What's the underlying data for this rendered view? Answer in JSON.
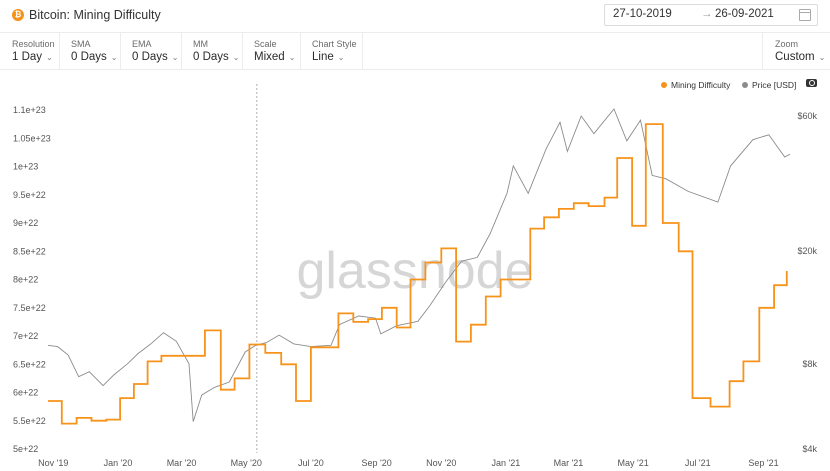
{
  "header": {
    "title": "Bitcoin: Mining Difficulty",
    "coin_glyph": "₿",
    "date_from": "27-10-2019",
    "date_arrow": "→",
    "date_to": "26-09-2021"
  },
  "controls": [
    {
      "label": "Resolution",
      "value": "1 Day"
    },
    {
      "label": "SMA",
      "value": "0 Days"
    },
    {
      "label": "EMA",
      "value": "0 Days"
    },
    {
      "label": "MM",
      "value": "0 Days"
    },
    {
      "label": "Scale",
      "value": "Mixed"
    },
    {
      "label": "Chart Style",
      "value": "Line"
    }
  ],
  "zoom": {
    "label": "Zoom",
    "value": "Custom"
  },
  "watermark": "glassnode",
  "colors": {
    "difficulty": "#f7931a",
    "price": "#8c8c8c"
  },
  "chart_data": {
    "type": "line",
    "x_range": [
      "2019-10-27",
      "2021-09-26"
    ],
    "x_ticks": [
      "Nov '19",
      "Jan '20",
      "Mar '20",
      "May '20",
      "Jul '20",
      "Sep '20",
      "Nov '20",
      "Jan '21",
      "Mar '21",
      "May '21",
      "Jul '21",
      "Sep '21"
    ],
    "y_left": {
      "label": "",
      "min": 5e+22,
      "max": 1.1e+23,
      "ticks": [
        "5e+22",
        "5.5e+22",
        "6e+22",
        "6.5e+22",
        "7e+22",
        "7.5e+22",
        "8e+22",
        "8.5e+22",
        "9e+22",
        "9.5e+22",
        "1e+23",
        "1.05e+23",
        "1.1e+23"
      ]
    },
    "y_right": {
      "label": "",
      "scale": "log",
      "min": 4000,
      "max": 60000,
      "ticks": [
        "$4k",
        "$8k",
        "$20k",
        "$60k"
      ]
    },
    "legend": [
      "Mining Difficulty",
      "Price [USD]"
    ],
    "crosshair_date": "2020-05-11",
    "series": [
      {
        "name": "Mining Difficulty",
        "axis": "left",
        "step": true,
        "points": [
          [
            "2019-10-27",
            5.85e+22
          ],
          [
            "2019-11-09",
            5.45e+22
          ],
          [
            "2019-11-23",
            5.55e+22
          ],
          [
            "2019-12-07",
            5.5e+22
          ],
          [
            "2019-12-21",
            5.52e+22
          ],
          [
            "2020-01-03",
            5.9e+22
          ],
          [
            "2020-01-16",
            6.15e+22
          ],
          [
            "2020-01-29",
            6.55e+22
          ],
          [
            "2020-02-11",
            6.65e+22
          ],
          [
            "2020-02-24",
            6.65e+22
          ],
          [
            "2020-03-09",
            6.65e+22
          ],
          [
            "2020-03-23",
            7.1e+22
          ],
          [
            "2020-04-07",
            6.05e+22
          ],
          [
            "2020-04-20",
            6.25e+22
          ],
          [
            "2020-05-04",
            6.85e+22
          ],
          [
            "2020-05-19",
            6.7e+22
          ],
          [
            "2020-06-03",
            6.5e+22
          ],
          [
            "2020-06-17",
            5.85e+22
          ],
          [
            "2020-07-01",
            6.8e+22
          ],
          [
            "2020-07-15",
            6.8e+22
          ],
          [
            "2020-07-27",
            7.4e+22
          ],
          [
            "2020-08-10",
            7.25e+22
          ],
          [
            "2020-08-24",
            7.3e+22
          ],
          [
            "2020-09-06",
            7.5e+22
          ],
          [
            "2020-09-20",
            7.15e+22
          ],
          [
            "2020-10-03",
            8e+22
          ],
          [
            "2020-10-17",
            8.3e+22
          ],
          [
            "2020-11-01",
            8.55e+22
          ],
          [
            "2020-11-15",
            6.9e+22
          ],
          [
            "2020-11-29",
            7.2e+22
          ],
          [
            "2020-12-13",
            7.7e+22
          ],
          [
            "2020-12-27",
            8e+22
          ],
          [
            "2021-01-10",
            8e+22
          ],
          [
            "2021-01-24",
            8.9e+22
          ],
          [
            "2021-02-06",
            9.1e+22
          ],
          [
            "2021-02-20",
            9.25e+22
          ],
          [
            "2021-03-06",
            9.35e+22
          ],
          [
            "2021-03-20",
            9.3e+22
          ],
          [
            "2021-04-04",
            9.45e+22
          ],
          [
            "2021-04-16",
            1.015e+23
          ],
          [
            "2021-04-30",
            8.95e+22
          ],
          [
            "2021-05-13",
            1.075e+23
          ],
          [
            "2021-05-29",
            9e+22
          ],
          [
            "2021-06-13",
            8.5e+22
          ],
          [
            "2021-06-26",
            5.9e+22
          ],
          [
            "2021-07-13",
            5.75e+22
          ],
          [
            "2021-07-31",
            6.2e+22
          ],
          [
            "2021-08-13",
            6.55e+22
          ],
          [
            "2021-08-28",
            7.5e+22
          ],
          [
            "2021-09-11",
            7.9e+22
          ],
          [
            "2021-09-23",
            8.15e+22
          ]
        ]
      },
      {
        "name": "Price [USD]",
        "axis": "right",
        "points": [
          [
            "2019-10-27",
            9300
          ],
          [
            "2019-11-05",
            9200
          ],
          [
            "2019-11-15",
            8600
          ],
          [
            "2019-11-25",
            7200
          ],
          [
            "2019-12-05",
            7500
          ],
          [
            "2019-12-18",
            6700
          ],
          [
            "2019-12-28",
            7300
          ],
          [
            "2020-01-10",
            8000
          ],
          [
            "2020-01-20",
            8700
          ],
          [
            "2020-02-01",
            9400
          ],
          [
            "2020-02-13",
            10300
          ],
          [
            "2020-02-25",
            9600
          ],
          [
            "2020-03-08",
            8000
          ],
          [
            "2020-03-12",
            5000
          ],
          [
            "2020-03-20",
            6200
          ],
          [
            "2020-04-01",
            6600
          ],
          [
            "2020-04-15",
            6900
          ],
          [
            "2020-04-30",
            8800
          ],
          [
            "2020-05-10",
            9300
          ],
          [
            "2020-05-20",
            9500
          ],
          [
            "2020-06-01",
            10100
          ],
          [
            "2020-06-15",
            9400
          ],
          [
            "2020-07-01",
            9200
          ],
          [
            "2020-07-20",
            9300
          ],
          [
            "2020-07-28",
            11000
          ],
          [
            "2020-08-15",
            11800
          ],
          [
            "2020-08-31",
            11600
          ],
          [
            "2020-09-05",
            10200
          ],
          [
            "2020-09-20",
            10900
          ],
          [
            "2020-10-10",
            11300
          ],
          [
            "2020-10-21",
            12800
          ],
          [
            "2020-11-05",
            15500
          ],
          [
            "2020-11-20",
            18400
          ],
          [
            "2020-12-05",
            19000
          ],
          [
            "2020-12-17",
            23000
          ],
          [
            "2021-01-02",
            32000
          ],
          [
            "2021-01-08",
            40000
          ],
          [
            "2021-01-22",
            32000
          ],
          [
            "2021-02-08",
            46000
          ],
          [
            "2021-02-21",
            57000
          ],
          [
            "2021-02-28",
            45000
          ],
          [
            "2021-03-13",
            60000
          ],
          [
            "2021-03-25",
            52000
          ],
          [
            "2021-04-13",
            63500
          ],
          [
            "2021-04-25",
            49000
          ],
          [
            "2021-05-08",
            58000
          ],
          [
            "2021-05-19",
            37000
          ],
          [
            "2021-06-01",
            36000
          ],
          [
            "2021-06-22",
            32500
          ],
          [
            "2021-07-20",
            29800
          ],
          [
            "2021-08-01",
            40000
          ],
          [
            "2021-08-22",
            49500
          ],
          [
            "2021-09-06",
            51500
          ],
          [
            "2021-09-21",
            43000
          ],
          [
            "2021-09-26",
            44000
          ]
        ]
      }
    ]
  }
}
